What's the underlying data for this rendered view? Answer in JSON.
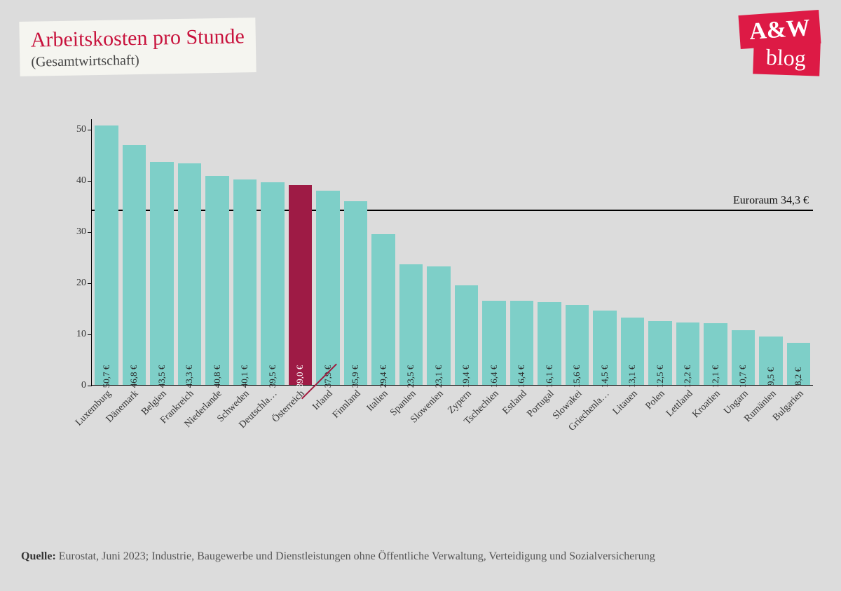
{
  "title": "Arbeitskosten pro Stunde",
  "subtitle": "(Gesamtwirtschaft)",
  "logo": {
    "top": "A&W",
    "bottom": "blog"
  },
  "source_label": "Quelle:",
  "source_text": " Eurostat, Juni 2023; Industrie, Baugewerbe und Dienstleistungen ohne Öffentliche Verwaltung, Verteidigung und Sozialversicherung",
  "chart": {
    "type": "bar",
    "ylim": [
      0,
      52
    ],
    "yticks": [
      0,
      10,
      20,
      30,
      40,
      50
    ],
    "reference_line": {
      "value": 34.3,
      "label": "Euroraum 34,3 €"
    },
    "bar_color": "#7ecfc8",
    "highlight_color": "#9e1b45",
    "highlight_index": 7,
    "background_color": "#dcdcdc",
    "axis_color": "#000000",
    "text_color": "#333333",
    "data": [
      {
        "country": "Luxemburg",
        "value": 50.7,
        "label": "50,7 €"
      },
      {
        "country": "Dänemark",
        "value": 46.8,
        "label": "46,8 €"
      },
      {
        "country": "Belgien",
        "value": 43.5,
        "label": "43,5 €"
      },
      {
        "country": "Frankreich",
        "value": 43.3,
        "label": "43,3 €"
      },
      {
        "country": "Niederlande",
        "value": 40.8,
        "label": "40,8 €"
      },
      {
        "country": "Schweden",
        "value": 40.1,
        "label": "40,1 €"
      },
      {
        "country": "Deutschla…",
        "value": 39.5,
        "label": "39,5 €"
      },
      {
        "country": "Österreich",
        "value": 39.0,
        "label": "39,0 €"
      },
      {
        "country": "Irland",
        "value": 37.9,
        "label": "37,9 €"
      },
      {
        "country": "Finnland",
        "value": 35.9,
        "label": "35,9 €"
      },
      {
        "country": "Italien",
        "value": 29.4,
        "label": "29,4 €"
      },
      {
        "country": "Spanien",
        "value": 23.5,
        "label": "23,5 €"
      },
      {
        "country": "Slowenien",
        "value": 23.1,
        "label": "23,1 €"
      },
      {
        "country": "Zypern",
        "value": 19.4,
        "label": "19,4 €"
      },
      {
        "country": "Tschechien",
        "value": 16.4,
        "label": "16,4 €"
      },
      {
        "country": "Estland",
        "value": 16.4,
        "label": "16,4 €"
      },
      {
        "country": "Portugal",
        "value": 16.1,
        "label": "16,1 €"
      },
      {
        "country": "Slowakei",
        "value": 15.6,
        "label": "15,6 €"
      },
      {
        "country": "Griechenla…",
        "value": 14.5,
        "label": "14,5 €"
      },
      {
        "country": "Litauen",
        "value": 13.1,
        "label": "13,1 €"
      },
      {
        "country": "Polen",
        "value": 12.5,
        "label": "12,5 €"
      },
      {
        "country": "Lettland",
        "value": 12.2,
        "label": "12,2 €"
      },
      {
        "country": "Kroatien",
        "value": 12.1,
        "label": "12,1 €"
      },
      {
        "country": "Ungarn",
        "value": 10.7,
        "label": "10,7 €"
      },
      {
        "country": "Rumänien",
        "value": 9.5,
        "label": "9,5 €"
      },
      {
        "country": "Bulgarien",
        "value": 8.2,
        "label": "8,2 €"
      }
    ]
  }
}
